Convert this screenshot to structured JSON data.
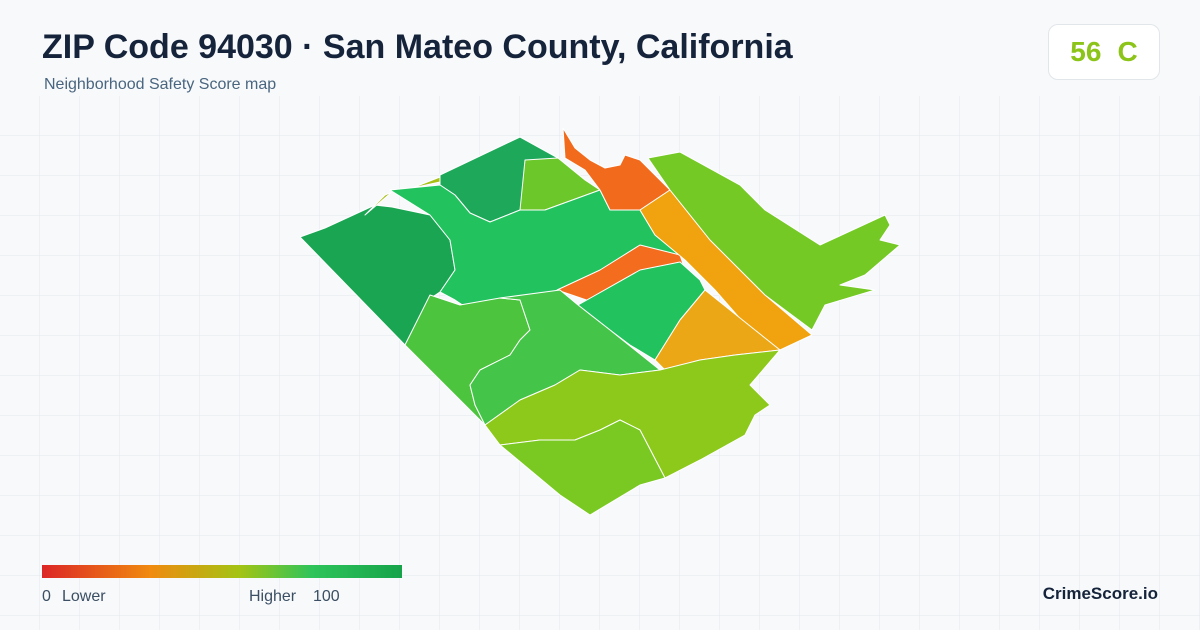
{
  "header": {
    "title": "ZIP Code 94030 · San Mateo County, California",
    "subtitle": "Neighborhood Safety Score map"
  },
  "score": {
    "value": "56",
    "grade": "C"
  },
  "legend": {
    "min": "0",
    "min_label": "Lower",
    "max_label": "Higher",
    "max": "100"
  },
  "footer": {
    "brand": "CrimeScore.io"
  }
}
